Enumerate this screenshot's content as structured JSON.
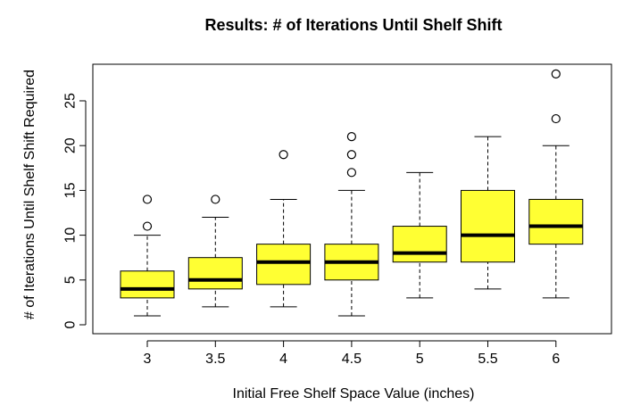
{
  "chart_data": {
    "type": "boxplot",
    "title": "Results: # of Iterations Until Shelf Shift",
    "xlabel": "Initial Free Shelf Space Value (inches)",
    "ylabel": "# of Iterations Until Shelf Shift Required",
    "ylim": [
      0,
      29
    ],
    "y_ticks": [
      "0",
      "5",
      "10",
      "15",
      "20",
      "25"
    ],
    "grid": false,
    "legend": "none",
    "box_color": "#ffff33",
    "categories": [
      "3",
      "3.5",
      "4",
      "4.5",
      "5",
      "5.5",
      "6"
    ],
    "boxes": [
      {
        "category": "3",
        "whisker_low": 1,
        "q1": 3,
        "median": 4,
        "q3": 6,
        "whisker_high": 10,
        "outliers": [
          11,
          14
        ]
      },
      {
        "category": "3.5",
        "whisker_low": 2,
        "q1": 4,
        "median": 5,
        "q3": 7.5,
        "whisker_high": 12,
        "outliers": [
          14
        ]
      },
      {
        "category": "4",
        "whisker_low": 2,
        "q1": 4.5,
        "median": 7,
        "q3": 9,
        "whisker_high": 14,
        "outliers": [
          19
        ]
      },
      {
        "category": "4.5",
        "whisker_low": 1,
        "q1": 5,
        "median": 7,
        "q3": 9,
        "whisker_high": 15,
        "outliers": [
          17,
          19,
          21
        ]
      },
      {
        "category": "5",
        "whisker_low": 3,
        "q1": 7,
        "median": 8,
        "q3": 11,
        "whisker_high": 17,
        "outliers": []
      },
      {
        "category": "5.5",
        "whisker_low": 4,
        "q1": 7,
        "median": 10,
        "q3": 15,
        "whisker_high": 21,
        "outliers": []
      },
      {
        "category": "6",
        "whisker_low": 3,
        "q1": 9,
        "median": 11,
        "q3": 14,
        "whisker_high": 20,
        "outliers": [
          23,
          28
        ]
      }
    ]
  }
}
